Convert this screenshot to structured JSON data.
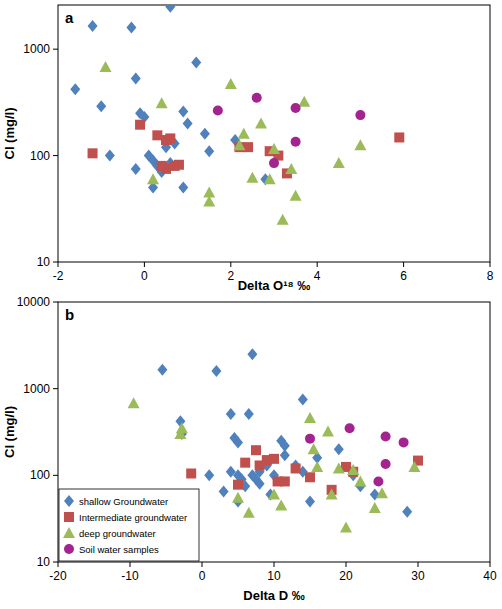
{
  "chart_data": [
    {
      "type": "scatter",
      "title": "a",
      "x_label": "Delta O¹⁸ ‰",
      "y_label": "Cl (mg/l)",
      "log": "y",
      "xlim": [
        -2,
        8
      ],
      "xticks": [
        -2,
        0,
        2,
        4,
        6,
        8
      ],
      "ylim": [
        10,
        2600
      ],
      "yticks": [
        10,
        100,
        1000
      ],
      "series": [
        {
          "color": "#4f81bd",
          "marker": "diamond",
          "x": [
            -1.6,
            -1.2,
            -0.3,
            -1.0,
            -0.8,
            -0.2,
            0.6,
            1.2,
            -0.2,
            -0.1,
            0.0,
            0.1,
            0.2,
            0.2,
            0.3,
            0.4,
            0.5,
            0.7,
            0.9,
            1.0,
            0.9,
            1.4,
            1.5,
            2.1,
            2.8,
            0.6
          ],
          "values": [
            420,
            1650,
            1600,
            290,
            100,
            530,
            2500,
            750,
            75,
            250,
            230,
            100,
            50,
            90,
            80,
            70,
            120,
            130,
            260,
            200,
            50,
            160,
            110,
            140,
            60,
            85
          ]
        },
        {
          "color": "#c0504d",
          "marker": "square",
          "x": [
            -1.2,
            -0.1,
            0.3,
            0.5,
            0.6,
            0.4,
            0.5,
            0.7,
            0.8,
            2.2,
            2.4,
            2.9,
            3.1,
            3.3,
            5.9
          ],
          "values": [
            105,
            195,
            155,
            140,
            145,
            80,
            75,
            80,
            82,
            120,
            120,
            110,
            100,
            68,
            148
          ]
        },
        {
          "color": "#9bbb59",
          "marker": "triangle",
          "x": [
            -0.9,
            0.4,
            0.2,
            1.5,
            1.5,
            2.0,
            2.3,
            2.2,
            2.5,
            2.7,
            2.9,
            3.0,
            3.2,
            3.5,
            3.4,
            3.7,
            4.5,
            5.0
          ],
          "values": [
            680,
            310,
            60,
            45,
            37,
            470,
            160,
            125,
            62,
            200,
            60,
            115,
            25,
            42,
            75,
            320,
            85,
            125
          ]
        },
        {
          "color": "#a3238f",
          "marker": "circle",
          "x": [
            1.7,
            2.6,
            3.0,
            3.5,
            3.5,
            5.0
          ],
          "values": [
            265,
            350,
            85,
            280,
            135,
            240
          ]
        }
      ]
    },
    {
      "type": "scatter",
      "title": "b",
      "x_label": "Delta D ‰",
      "y_label": "Cl (mg/l)",
      "log": "y",
      "legend": "lower left",
      "xlim": [
        -20,
        40
      ],
      "xticks": [
        -20,
        -10,
        0,
        10,
        20,
        30,
        40
      ],
      "ylim": [
        10,
        10000
      ],
      "yticks": [
        10,
        100,
        1000,
        10000
      ],
      "series": [
        {
          "name": "shallow Groundwater",
          "color": "#4f81bd",
          "marker": "diamond",
          "x": [
            -5.5,
            -3,
            -2.8,
            2,
            7,
            14,
            1,
            3,
            4,
            4.5,
            5,
            6.5,
            4,
            5,
            5.5,
            6,
            7,
            7.5,
            8,
            8,
            9,
            10,
            11,
            11.5,
            11.5,
            13,
            14,
            15,
            16,
            19,
            21,
            22,
            24,
            28.5,
            9.5,
            5
          ],
          "values": [
            1650,
            420,
            300,
            1600,
            2500,
            750,
            100,
            65,
            510,
            270,
            240,
            510,
            110,
            100,
            90,
            75,
            100,
            90,
            80,
            110,
            130,
            100,
            250,
            220,
            170,
            130,
            110,
            50,
            160,
            200,
            100,
            75,
            60,
            38,
            60,
            50
          ]
        },
        {
          "name": "Intermediate groundwater",
          "color": "#c0504d",
          "marker": "square",
          "x": [
            -1.5,
            5,
            6,
            7.5,
            8,
            9,
            10,
            10.5,
            11.5,
            13,
            15,
            20,
            21,
            18,
            30
          ],
          "values": [
            105,
            78,
            140,
            195,
            130,
            150,
            155,
            85,
            85,
            120,
            95,
            125,
            110,
            68,
            148
          ]
        },
        {
          "name": "deep groundwater",
          "color": "#9bbb59",
          "marker": "triangle",
          "x": [
            -9.5,
            -3,
            -2.8,
            5,
            6.5,
            10,
            11,
            15,
            15.5,
            16,
            17.5,
            18,
            19,
            20,
            21,
            22,
            24,
            25,
            29.5
          ],
          "values": [
            680,
            300,
            350,
            55,
            37,
            60,
            45,
            460,
            200,
            125,
            320,
            60,
            120,
            25,
            115,
            85,
            42,
            62,
            125
          ]
        },
        {
          "name": "Soil water samples",
          "color": "#a3238f",
          "marker": "circle",
          "x": [
            15,
            20.5,
            24.5,
            25.5,
            25.5,
            28
          ],
          "values": [
            265,
            350,
            85,
            280,
            135,
            240
          ]
        }
      ]
    }
  ]
}
